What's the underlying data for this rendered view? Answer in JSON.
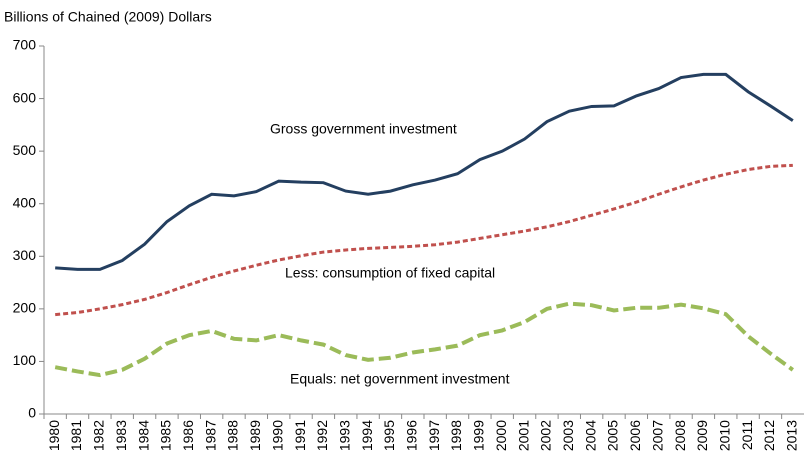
{
  "chart_data": {
    "type": "line",
    "y_axis_label": "Billions of Chained (2009) Dollars",
    "categories": [
      "1980",
      "1981",
      "1982",
      "1983",
      "1984",
      "1985",
      "1986",
      "1987",
      "1988",
      "1989",
      "1990",
      "1991",
      "1992",
      "1993",
      "1994",
      "1995",
      "1996",
      "1997",
      "1998",
      "1999",
      "2000",
      "2001",
      "2002",
      "2003",
      "2004",
      "2005",
      "2006",
      "2007",
      "2008",
      "2009",
      "2010",
      "2011",
      "2012",
      "2013"
    ],
    "series": [
      {
        "name": "Gross government investment",
        "color": "#243f60",
        "dash": "solid",
        "values": [
          278,
          275,
          275,
          292,
          323,
          366,
          396,
          418,
          415,
          423,
          443,
          441,
          440,
          424,
          418,
          424,
          436,
          445,
          457,
          484,
          500,
          523,
          556,
          576,
          585,
          586,
          605,
          619,
          640,
          646,
          646,
          613,
          586,
          558
        ]
      },
      {
        "name": "Less: consumption of fixed capital",
        "color": "#c0504d",
        "dash": "dashed",
        "values": [
          189,
          193,
          200,
          208,
          218,
          231,
          246,
          260,
          272,
          283,
          293,
          301,
          308,
          312,
          315,
          317,
          319,
          322,
          327,
          334,
          341,
          348,
          356,
          366,
          378,
          390,
          403,
          418,
          432,
          445,
          456,
          465,
          471,
          473
        ]
      },
      {
        "name": "Equals: net government investment",
        "color": "#9bbb59",
        "dash": "longdash",
        "values": [
          89,
          81,
          74,
          84,
          105,
          134,
          150,
          158,
          143,
          140,
          150,
          140,
          132,
          112,
          103,
          107,
          117,
          123,
          130,
          150,
          159,
          175,
          200,
          210,
          207,
          197,
          202,
          202,
          208,
          201,
          190,
          148,
          115,
          84
        ]
      }
    ],
    "ylim": [
      0,
      700
    ],
    "yticks": [
      0,
      100,
      200,
      300,
      400,
      500,
      600,
      700
    ],
    "grid": false
  }
}
